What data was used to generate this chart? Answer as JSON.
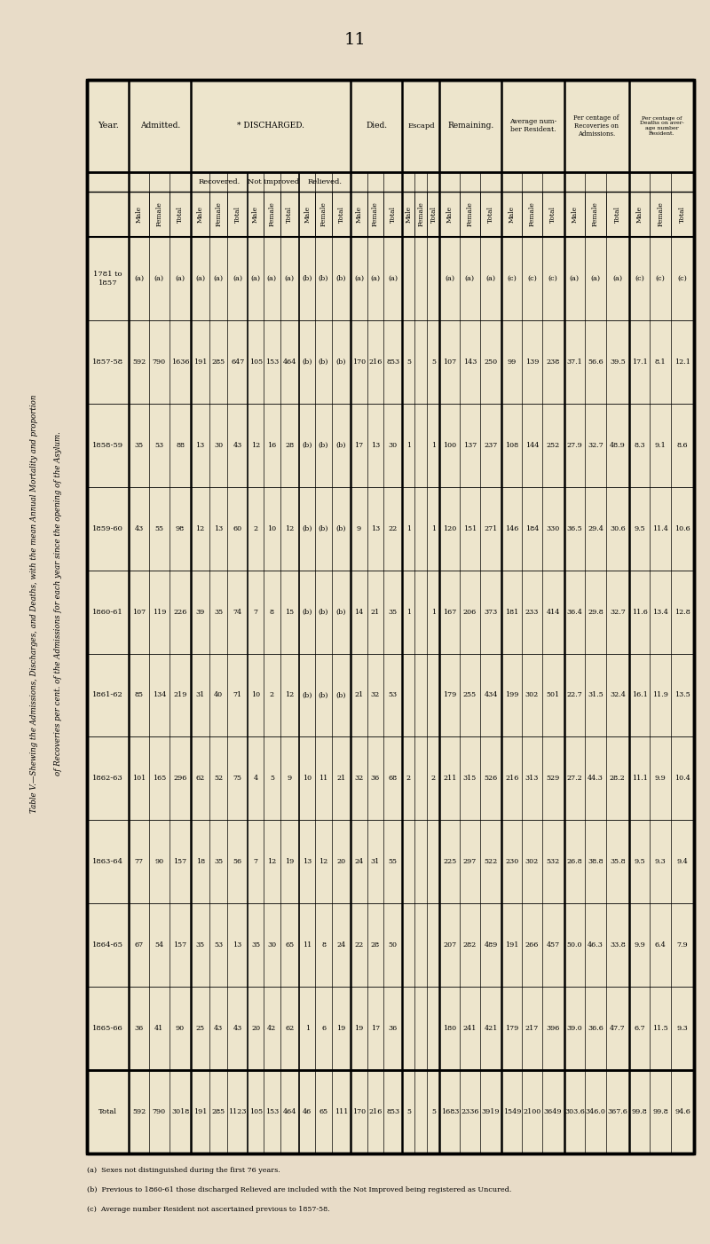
{
  "bg_color": "#e8dcc8",
  "table_bg": "#ede5cc",
  "page_number": "11",
  "title_line1": "Table V.—Shewing the Admissions, Discharges, and Deaths, with the mean Annual Mortality and proportion",
  "title_line2": "of Recoveries per cent. of the Admissions for each year since the opening of the Asylum.",
  "footnotes": [
    "(a)  Sexes not distinguished during the first 76 years.",
    "(b)  Previous to 1860-61 those discharged Relieved are included with the Not Improved being registered as Uncured.",
    "(c)  Average number Resident not ascertained previous to 1857-58."
  ],
  "year_labels": [
    "1781 to\n1857",
    "1857-58",
    "1858-59",
    "1859-60",
    "1860-61",
    "1861-62",
    "1862-63",
    "1863-64",
    "1864-65",
    "1865-66",
    "Total"
  ],
  "data_rows": [
    [
      "1781 to\n1857",
      "(a)",
      "(a)",
      "(a)",
      "(a)",
      "(a)",
      "(a)",
      "(a)",
      "(a)",
      "(a)",
      "(b)",
      "(b)",
      "(b)",
      "(a)",
      "(a)",
      "(a)",
      "",
      "",
      "",
      "(a)",
      "(a)",
      "(a)",
      "(c)",
      "(c)",
      "(c)",
      "(a)",
      "(a)",
      "(a)",
      "(c)",
      "(c)",
      "(c)"
    ],
    [
      "1857-58",
      "592",
      "790",
      "1636",
      "191",
      "285",
      "647",
      "105",
      "153",
      "464",
      "(b)",
      "(b)",
      "(b)",
      "170",
      "216",
      "853",
      "5",
      "",
      "5",
      "107",
      "143",
      "250",
      "99",
      "139",
      "238",
      "37.1",
      "56.6",
      "39.5",
      "17.1",
      "8.1",
      "12.1"
    ],
    [
      "1858-59",
      "35",
      "53",
      "88",
      "13",
      "30",
      "43",
      "12",
      "16",
      "28",
      "(b)",
      "(b)",
      "(b)",
      "17",
      "13",
      "30",
      "1",
      "",
      "1",
      "100",
      "137",
      "237",
      "108",
      "144",
      "252",
      "27.9",
      "32.7",
      "48.9",
      "8.3",
      "9.1",
      "8.6"
    ],
    [
      "1859-60",
      "43",
      "55",
      "98",
      "12",
      "13",
      "60",
      "2",
      "10",
      "12",
      "(b)",
      "(b)",
      "(b)",
      "9",
      "13",
      "22",
      "1",
      "",
      "1",
      "120",
      "151",
      "271",
      "146",
      "184",
      "330",
      "36.5",
      "29.4",
      "30.6",
      "9.5",
      "11.4",
      "10.6"
    ],
    [
      "1860-61",
      "107",
      "119",
      "226",
      "39",
      "35",
      "74",
      "7",
      "8",
      "15",
      "(b)",
      "(b)",
      "(b)",
      "14",
      "21",
      "35",
      "1",
      "",
      "1",
      "167",
      "206",
      "373",
      "181",
      "233",
      "414",
      "36.4",
      "29.8",
      "32.7",
      "11.6",
      "13.4",
      "12.8"
    ],
    [
      "1861-62",
      "85",
      "134",
      "219",
      "31",
      "40",
      "71",
      "10",
      "2",
      "12",
      "(b)",
      "(b)",
      "(b)",
      "21",
      "32",
      "53",
      "",
      "",
      "",
      "179",
      "255",
      "434",
      "199",
      "302",
      "501",
      "22.7",
      "31.5",
      "32.4",
      "16.1",
      "11.9",
      "13.5"
    ],
    [
      "1862-63",
      "101",
      "165",
      "296",
      "62",
      "52",
      "75",
      "4",
      "5",
      "9",
      "10",
      "11",
      "21",
      "32",
      "36",
      "68",
      "2",
      "",
      "2",
      "211",
      "315",
      "526",
      "216",
      "313",
      "529",
      "27.2",
      "44.3",
      "28.2",
      "11.1",
      "9.9",
      "10.4"
    ],
    [
      "1863-64",
      "77",
      "90",
      "157",
      "18",
      "35",
      "56",
      "7",
      "12",
      "19",
      "13",
      "12",
      "20",
      "24",
      "31",
      "55",
      "",
      "",
      "",
      "225",
      "297",
      "522",
      "230",
      "302",
      "532",
      "26.8",
      "38.8",
      "35.8",
      "9.5",
      "9.3",
      "9.4"
    ],
    [
      "1864-65",
      "67",
      "54",
      "157",
      "35",
      "53",
      "13",
      "35",
      "30",
      "65",
      "11",
      "8",
      "24",
      "22",
      "28",
      "50",
      "",
      "",
      "",
      "207",
      "282",
      "489",
      "191",
      "266",
      "457",
      "50.0",
      "46.3",
      "33.8",
      "9.9",
      "6.4",
      "7.9"
    ],
    [
      "1865-66",
      "36",
      "41",
      "90",
      "25",
      "43",
      "43",
      "20",
      "42",
      "62",
      "1",
      "6",
      "19",
      "19",
      "17",
      "36",
      "",
      "",
      "",
      "180",
      "241",
      "421",
      "179",
      "217",
      "396",
      "39.0",
      "36.6",
      "47.7",
      "6.7",
      "11.5",
      "9.3"
    ],
    [
      "Total",
      "592",
      "790",
      "3018",
      "191",
      "285",
      "1123",
      "105",
      "153",
      "464",
      "46",
      "65",
      "111",
      "170",
      "216",
      "853",
      "5",
      "",
      "5",
      "1683",
      "2336",
      "3919",
      "1549",
      "2100",
      "3649",
      "303.6",
      "346.0",
      "367.6",
      "99.8",
      "99.8",
      "94.6"
    ]
  ]
}
